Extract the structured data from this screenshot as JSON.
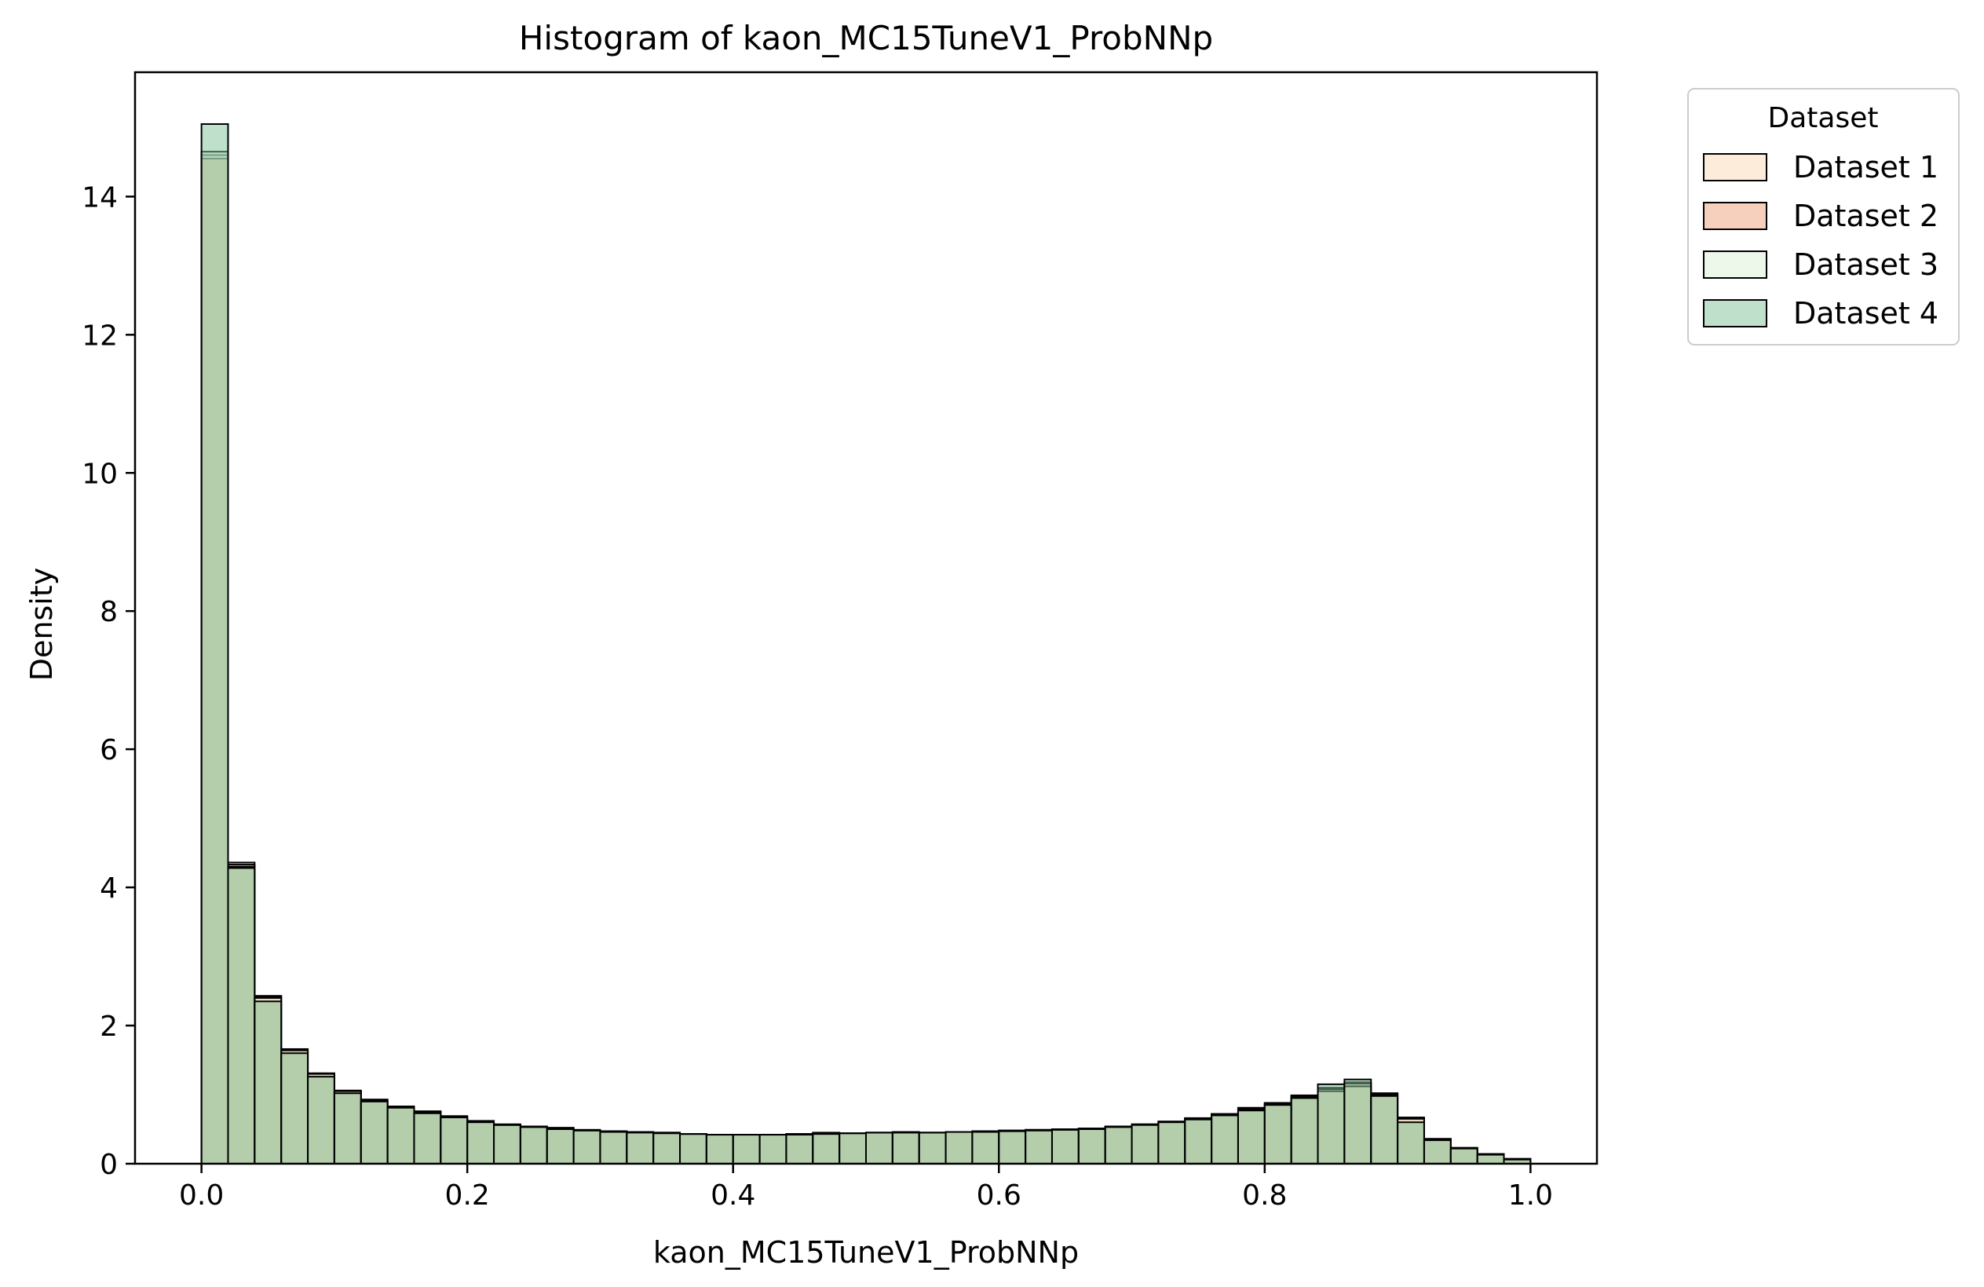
{
  "chart_data": {
    "type": "bar",
    "title": "Histogram of kaon_MC15TuneV1_ProbNNp",
    "xlabel": "kaon_MC15TuneV1_ProbNNp",
    "ylabel": "Density",
    "xlim": [
      -0.05,
      1.05
    ],
    "ylim": [
      0,
      15.8
    ],
    "x_ticks": [
      0.0,
      0.2,
      0.4,
      0.6,
      0.8,
      1.0
    ],
    "x_tick_labels": [
      "0.0",
      "0.2",
      "0.4",
      "0.6",
      "0.8",
      "1.0"
    ],
    "y_ticks": [
      0,
      2,
      4,
      6,
      8,
      10,
      12,
      14
    ],
    "y_tick_labels": [
      "0",
      "2",
      "4",
      "6",
      "8",
      "10",
      "12",
      "14"
    ],
    "grid": false,
    "bin_edges": [
      0.0,
      0.02,
      0.04,
      0.06,
      0.08,
      0.1,
      0.12,
      0.14,
      0.16,
      0.18,
      0.2,
      0.22,
      0.24,
      0.26,
      0.28,
      0.3,
      0.32,
      0.34,
      0.36,
      0.38,
      0.4,
      0.42,
      0.44,
      0.46,
      0.48,
      0.5,
      0.52,
      0.54,
      0.56,
      0.58,
      0.6,
      0.62,
      0.64,
      0.66,
      0.68,
      0.7,
      0.72,
      0.74,
      0.76,
      0.78,
      0.8,
      0.82,
      0.84,
      0.86,
      0.88,
      0.9,
      0.92,
      0.94,
      0.96,
      0.98,
      1.0
    ],
    "series": [
      {
        "name": "Dataset 1",
        "color": "#fdd9b8",
        "values": [
          14.6,
          4.36,
          2.43,
          1.66,
          1.31,
          1.06,
          0.93,
          0.83,
          0.76,
          0.69,
          0.62,
          0.57,
          0.54,
          0.52,
          0.49,
          0.47,
          0.46,
          0.45,
          0.43,
          0.42,
          0.42,
          0.42,
          0.43,
          0.44,
          0.44,
          0.45,
          0.45,
          0.45,
          0.46,
          0.47,
          0.48,
          0.49,
          0.5,
          0.51,
          0.54,
          0.57,
          0.61,
          0.66,
          0.72,
          0.81,
          0.88,
          0.99,
          1.1,
          1.18,
          1.02,
          0.66,
          0.36,
          0.23,
          0.14,
          0.07
        ]
      },
      {
        "name": "Dataset 2",
        "color": "#f0a27c",
        "values": [
          14.55,
          4.33,
          2.42,
          1.65,
          1.3,
          1.05,
          0.92,
          0.82,
          0.75,
          0.68,
          0.62,
          0.57,
          0.54,
          0.52,
          0.49,
          0.47,
          0.46,
          0.45,
          0.43,
          0.42,
          0.42,
          0.42,
          0.43,
          0.45,
          0.44,
          0.45,
          0.46,
          0.45,
          0.46,
          0.47,
          0.48,
          0.49,
          0.5,
          0.51,
          0.54,
          0.57,
          0.61,
          0.66,
          0.72,
          0.8,
          0.88,
          0.98,
          1.08,
          1.16,
          1.02,
          0.67,
          0.36,
          0.23,
          0.14,
          0.07
        ]
      },
      {
        "name": "Dataset 3",
        "color": "#dbefd5",
        "values": [
          14.65,
          4.3,
          2.4,
          1.64,
          1.3,
          1.05,
          0.92,
          0.82,
          0.75,
          0.68,
          0.61,
          0.56,
          0.53,
          0.51,
          0.48,
          0.47,
          0.46,
          0.45,
          0.43,
          0.42,
          0.42,
          0.42,
          0.43,
          0.44,
          0.44,
          0.45,
          0.45,
          0.45,
          0.46,
          0.47,
          0.48,
          0.49,
          0.5,
          0.51,
          0.54,
          0.57,
          0.61,
          0.65,
          0.7,
          0.78,
          0.86,
          0.96,
          1.05,
          1.12,
          1.0,
          0.65,
          0.35,
          0.22,
          0.14,
          0.07
        ]
      },
      {
        "name": "Dataset 4",
        "color": "#7fc298",
        "values": [
          15.05,
          4.28,
          2.35,
          1.6,
          1.26,
          1.02,
          0.9,
          0.81,
          0.73,
          0.67,
          0.6,
          0.56,
          0.53,
          0.5,
          0.48,
          0.46,
          0.45,
          0.44,
          0.43,
          0.42,
          0.42,
          0.42,
          0.42,
          0.43,
          0.44,
          0.45,
          0.45,
          0.45,
          0.46,
          0.46,
          0.47,
          0.48,
          0.49,
          0.5,
          0.53,
          0.56,
          0.6,
          0.64,
          0.7,
          0.77,
          0.85,
          0.95,
          1.15,
          1.22,
          0.98,
          0.6,
          0.34,
          0.22,
          0.13,
          0.06
        ]
      }
    ],
    "legend": {
      "title": "Dataset",
      "placement": "outside-right-top",
      "entries": [
        "Dataset 1",
        "Dataset 2",
        "Dataset 3",
        "Dataset 4"
      ]
    }
  }
}
